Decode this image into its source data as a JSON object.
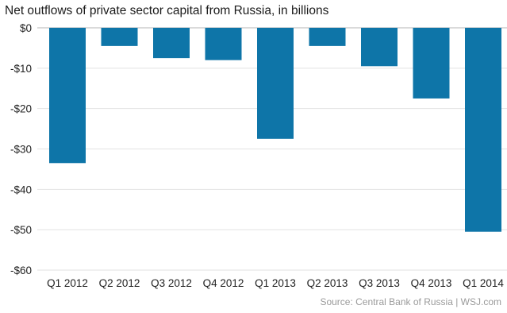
{
  "chart_data": {
    "type": "bar",
    "title": "Net outflows of private sector capital from Russia, in billions",
    "categories": [
      "Q1 2012",
      "Q2 2012",
      "Q3 2012",
      "Q4 2012",
      "Q1 2013",
      "Q2 2013",
      "Q3 2013",
      "Q4 2013",
      "Q1 2014"
    ],
    "values": [
      -33.5,
      -4.5,
      -7.5,
      -8,
      -27.5,
      -4.5,
      -9.5,
      -17.5,
      -50.5
    ],
    "ylim": [
      -60,
      0
    ],
    "yticks": [
      0,
      -10,
      -20,
      -30,
      -40,
      -50,
      -60
    ],
    "ytick_labels": [
      "$0",
      "-$10",
      "-$20",
      "-$30",
      "-$40",
      "-$50",
      "-$60"
    ],
    "grid": true,
    "bar_color": "#0e75a8",
    "source": "Source: Central Bank of Russia  |  WSJ.com"
  }
}
